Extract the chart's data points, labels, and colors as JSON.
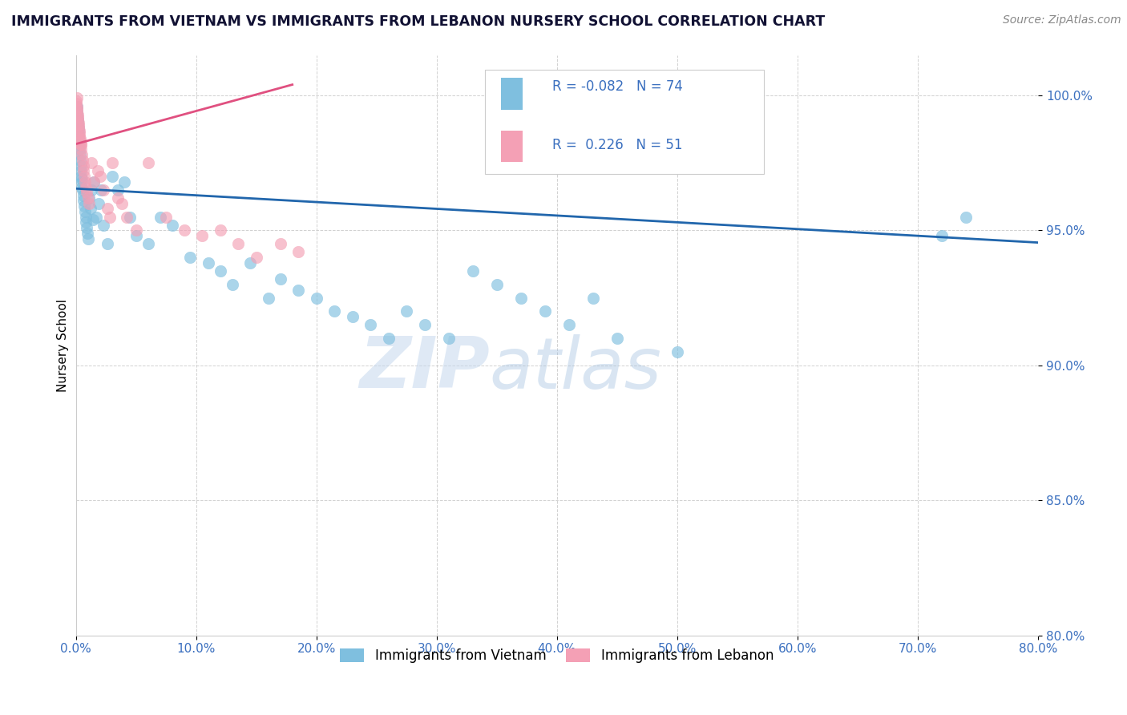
{
  "title": "IMMIGRANTS FROM VIETNAM VS IMMIGRANTS FROM LEBANON NURSERY SCHOOL CORRELATION CHART",
  "source": "Source: ZipAtlas.com",
  "ylabel": "Nursery School",
  "xmin": 0.0,
  "xmax": 80.0,
  "ymin": 80.0,
  "ymax": 101.5,
  "yticks": [
    80.0,
    85.0,
    90.0,
    95.0,
    100.0
  ],
  "xticks": [
    0.0,
    10.0,
    20.0,
    30.0,
    40.0,
    50.0,
    60.0,
    70.0,
    80.0
  ],
  "legend1_label": "Immigrants from Vietnam",
  "legend2_label": "Immigrants from Lebanon",
  "R_vietnam": -0.082,
  "N_vietnam": 74,
  "R_lebanon": 0.226,
  "N_lebanon": 51,
  "color_vietnam": "#7fbfdf",
  "color_lebanon": "#f4a0b5",
  "color_trendline_vietnam": "#2166ac",
  "color_trendline_lebanon": "#e05080",
  "watermark_zip": "ZIP",
  "watermark_atlas": "atlas",
  "viet_trend_x0": 0.0,
  "viet_trend_y0": 96.55,
  "viet_trend_x1": 80.0,
  "viet_trend_y1": 94.55,
  "leb_trend_x0": 0.0,
  "leb_trend_y0": 98.2,
  "leb_trend_x1": 18.0,
  "leb_trend_y1": 100.4,
  "vietnam_x": [
    0.05,
    0.08,
    0.1,
    0.12,
    0.15,
    0.17,
    0.2,
    0.22,
    0.25,
    0.28,
    0.3,
    0.32,
    0.35,
    0.38,
    0.4,
    0.42,
    0.45,
    0.48,
    0.5,
    0.52,
    0.55,
    0.6,
    0.65,
    0.7,
    0.75,
    0.8,
    0.85,
    0.9,
    0.95,
    1.0,
    1.1,
    1.2,
    1.3,
    1.4,
    1.5,
    1.7,
    1.9,
    2.1,
    2.3,
    2.6,
    3.0,
    3.5,
    4.0,
    4.5,
    5.0,
    6.0,
    7.0,
    8.0,
    9.5,
    11.0,
    12.0,
    13.0,
    14.5,
    16.0,
    17.0,
    18.5,
    20.0,
    21.5,
    23.0,
    24.5,
    26.0,
    27.5,
    29.0,
    31.0,
    33.0,
    35.0,
    37.0,
    39.0,
    41.0,
    43.0,
    45.0,
    50.0,
    72.0,
    74.0
  ],
  "vietnam_y": [
    99.5,
    99.6,
    99.4,
    99.3,
    99.0,
    99.1,
    98.8,
    98.7,
    98.5,
    98.3,
    98.0,
    98.2,
    97.8,
    97.6,
    97.4,
    97.2,
    97.0,
    96.8,
    96.6,
    96.9,
    96.5,
    96.3,
    96.1,
    95.9,
    95.7,
    95.5,
    95.3,
    95.1,
    94.9,
    94.7,
    96.2,
    95.8,
    96.5,
    95.4,
    96.8,
    95.5,
    96.0,
    96.5,
    95.2,
    94.5,
    97.0,
    96.5,
    96.8,
    95.5,
    94.8,
    94.5,
    95.5,
    95.2,
    94.0,
    93.8,
    93.5,
    93.0,
    93.8,
    92.5,
    93.2,
    92.8,
    92.5,
    92.0,
    91.8,
    91.5,
    91.0,
    92.0,
    91.5,
    91.0,
    93.5,
    93.0,
    92.5,
    92.0,
    91.5,
    92.5,
    91.0,
    90.5,
    94.8,
    95.5
  ],
  "lebanon_x": [
    0.03,
    0.05,
    0.07,
    0.09,
    0.1,
    0.12,
    0.14,
    0.16,
    0.18,
    0.2,
    0.22,
    0.25,
    0.28,
    0.3,
    0.32,
    0.35,
    0.38,
    0.4,
    0.45,
    0.5,
    0.55,
    0.6,
    0.65,
    0.7,
    0.75,
    0.8,
    0.9,
    1.0,
    1.1,
    1.3,
    1.5,
    1.8,
    2.0,
    2.3,
    2.6,
    3.0,
    3.5,
    4.2,
    5.0,
    6.0,
    7.5,
    9.0,
    10.5,
    12.0,
    13.5,
    15.0,
    17.0,
    18.5,
    3.8,
    2.8,
    0.42
  ],
  "lebanon_y": [
    99.8,
    99.7,
    99.9,
    99.6,
    99.5,
    99.4,
    99.3,
    99.2,
    99.1,
    99.0,
    98.9,
    98.8,
    98.7,
    98.6,
    98.5,
    98.4,
    98.3,
    98.2,
    98.0,
    97.8,
    97.6,
    97.4,
    97.2,
    97.0,
    96.8,
    96.6,
    96.4,
    96.2,
    96.0,
    97.5,
    96.8,
    97.2,
    97.0,
    96.5,
    95.8,
    97.5,
    96.2,
    95.5,
    95.0,
    97.5,
    95.5,
    95.0,
    94.8,
    95.0,
    94.5,
    94.0,
    94.5,
    94.2,
    96.0,
    95.5,
    98.2
  ]
}
